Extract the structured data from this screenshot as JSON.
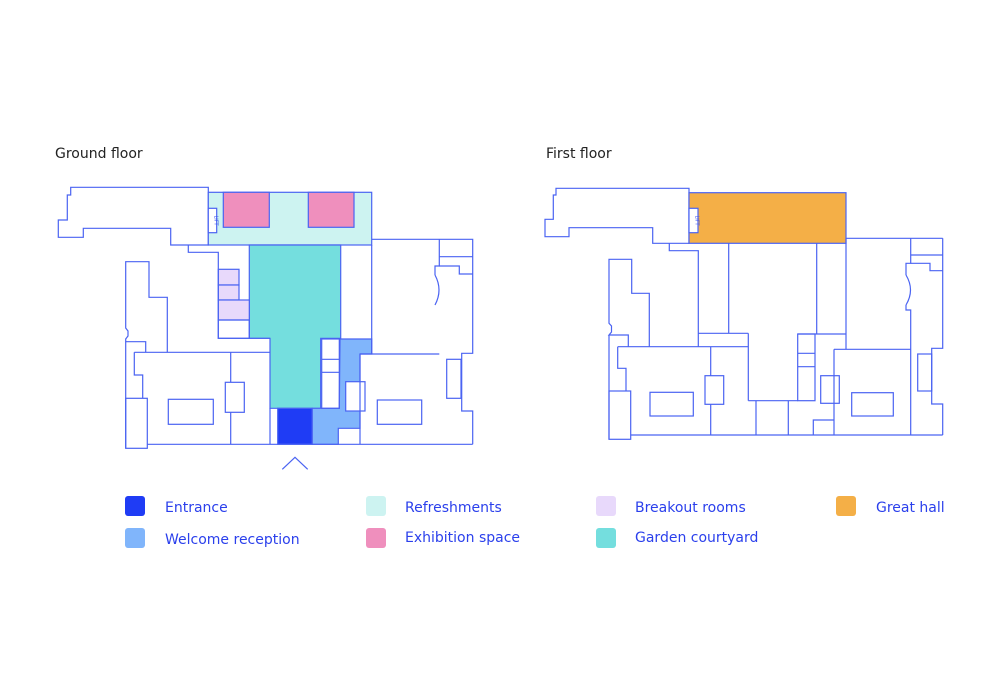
{
  "floors": {
    "ground": {
      "title": "Ground floor",
      "lift_label": "LIFT"
    },
    "first": {
      "title": "First floor",
      "lift_label": "LIFT"
    }
  },
  "legend": [
    {
      "label": "Entrance",
      "color": "#1f3cf5"
    },
    {
      "label": "Welcome reception",
      "color": "#80b5fb"
    },
    {
      "label": "Refreshments",
      "color": "#cdf3f1"
    },
    {
      "label": "Exhibition space",
      "color": "#ef8fbd"
    },
    {
      "label": "Breakout rooms",
      "color": "#e8d9fb"
    },
    {
      "label": "Garden courtyard",
      "color": "#74dede"
    },
    {
      "label": "Great hall",
      "color": "#f4af47"
    }
  ],
  "colors": {
    "wall": "#4a63f2",
    "legend_text": "#2b40ec"
  }
}
